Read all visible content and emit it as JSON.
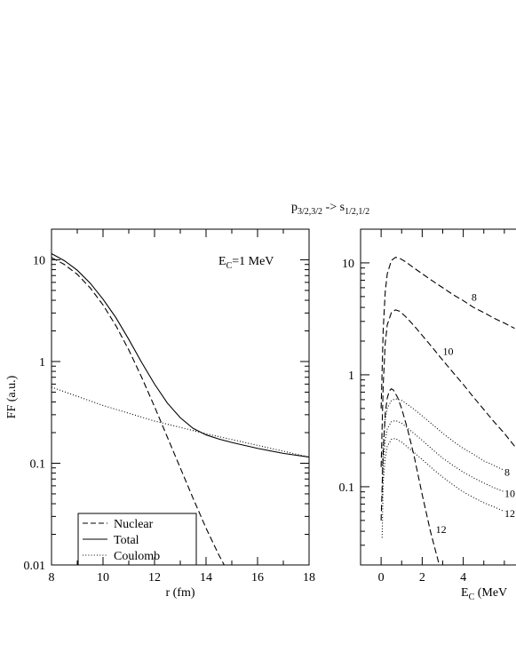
{
  "figure": {
    "title_main": "p",
    "title_sub1": "3/2,3/2",
    "title_arrow": " -> s",
    "title_sub2": "1/2,1/2"
  },
  "chart_data": [
    {
      "type": "line",
      "yscale": "log",
      "xlabel": "r (fm)",
      "ylabel": "FF (a.u.)",
      "xlim": [
        8,
        18
      ],
      "ylim": [
        0.01,
        20
      ],
      "xticks": [
        8,
        10,
        12,
        14,
        16,
        18
      ],
      "yticks": [
        0.01,
        0.1,
        1,
        10
      ],
      "ytick_labels": [
        "0.01",
        "0.1",
        "1",
        "10"
      ],
      "annotation": {
        "main": "E",
        "sub": "C",
        "rest": "=1 MeV"
      },
      "legend_position": "bottom-left",
      "series": [
        {
          "name": "Nuclear",
          "style": "dashed",
          "x": [
            8,
            8.5,
            9,
            9.5,
            10,
            10.5,
            11,
            11.5,
            12,
            12.5,
            13,
            13.5,
            14,
            14.5,
            14.8
          ],
          "y": [
            10.5,
            9.0,
            7.2,
            5.3,
            3.6,
            2.25,
            1.3,
            0.7,
            0.36,
            0.18,
            0.09,
            0.045,
            0.023,
            0.0125,
            0.009
          ]
        },
        {
          "name": "Total",
          "style": "solid",
          "x": [
            8,
            8.5,
            9,
            9.5,
            10,
            10.5,
            11,
            11.5,
            12,
            12.5,
            13,
            13.5,
            14,
            14.5,
            15,
            16,
            17,
            18
          ],
          "y": [
            11.5,
            9.8,
            7.9,
            5.9,
            4.1,
            2.7,
            1.65,
            0.98,
            0.6,
            0.39,
            0.28,
            0.22,
            0.19,
            0.173,
            0.16,
            0.14,
            0.125,
            0.115
          ]
        },
        {
          "name": "Coulomb",
          "style": "dotted",
          "x": [
            8,
            10,
            12,
            14,
            16,
            18
          ],
          "y": [
            0.56,
            0.37,
            0.26,
            0.195,
            0.15,
            0.115
          ]
        }
      ]
    },
    {
      "type": "line",
      "yscale": "log",
      "xlabel": "E",
      "xlabel_sub": "C",
      "xlabel_rest": " (MeV",
      "xlim": [
        -1,
        7
      ],
      "ylim": [
        0.02,
        20
      ],
      "xticks": [
        0,
        2,
        4
      ],
      "yticks": [
        0.1,
        1,
        10
      ],
      "ytick_labels": [
        "0.1",
        "1",
        "10"
      ],
      "series": [
        {
          "label": "8",
          "style": "dashed",
          "x": [
            0.0,
            0.1,
            0.2,
            0.3,
            0.5,
            0.7,
            0.9,
            1.2,
            1.6,
            2.0,
            2.5,
            3.0,
            3.5,
            4.0,
            4.5,
            5.0,
            5.5,
            6.0,
            6.5
          ],
          "y": [
            0.5,
            2.5,
            5.5,
            8.0,
            10.5,
            11.2,
            11.0,
            10.2,
            9.0,
            8.0,
            6.9,
            6.0,
            5.2,
            4.6,
            4.0,
            3.6,
            3.2,
            2.9,
            2.6
          ]
        },
        {
          "label": "10",
          "style": "dashed",
          "x": [
            0.0,
            0.1,
            0.2,
            0.3,
            0.5,
            0.7,
            0.9,
            1.2,
            1.6,
            2.0,
            2.5,
            3.0,
            3.5,
            4.0,
            4.5,
            5.0,
            5.5,
            6.0,
            6.5
          ],
          "y": [
            0.15,
            0.8,
            1.9,
            2.8,
            3.6,
            3.8,
            3.7,
            3.3,
            2.75,
            2.25,
            1.75,
            1.35,
            1.05,
            0.82,
            0.63,
            0.49,
            0.38,
            0.3,
            0.23
          ]
        },
        {
          "label": "12",
          "style": "dashed",
          "x": [
            0.0,
            0.1,
            0.2,
            0.3,
            0.4,
            0.5,
            0.6,
            0.8,
            1.0,
            1.3,
            1.6,
            2.0,
            2.4,
            2.8,
            3.0
          ],
          "y": [
            0.05,
            0.2,
            0.45,
            0.62,
            0.72,
            0.75,
            0.73,
            0.63,
            0.5,
            0.32,
            0.19,
            0.085,
            0.04,
            0.021,
            0.016
          ]
        },
        {
          "label": "8",
          "style": "dotted",
          "x": [
            0.05,
            0.1,
            0.2,
            0.3,
            0.5,
            0.7,
            1.0,
            1.5,
            2.0,
            2.5,
            3.0,
            3.5,
            4.0,
            4.5,
            5.0,
            5.5,
            6.0
          ],
          "y": [
            0.13,
            0.24,
            0.4,
            0.5,
            0.59,
            0.61,
            0.59,
            0.51,
            0.43,
            0.36,
            0.3,
            0.255,
            0.22,
            0.195,
            0.17,
            0.155,
            0.14
          ]
        },
        {
          "label": "10",
          "style": "dotted",
          "x": [
            0.05,
            0.1,
            0.2,
            0.3,
            0.5,
            0.7,
            1.0,
            1.5,
            2.0,
            2.5,
            3.0,
            3.5,
            4.0,
            4.5,
            5.0,
            5.5,
            6.0
          ],
          "y": [
            0.08,
            0.16,
            0.26,
            0.33,
            0.38,
            0.39,
            0.37,
            0.31,
            0.26,
            0.215,
            0.18,
            0.155,
            0.135,
            0.12,
            0.108,
            0.098,
            0.09
          ]
        },
        {
          "label": "12",
          "style": "dotted",
          "x": [
            0.05,
            0.1,
            0.2,
            0.3,
            0.5,
            0.7,
            1.0,
            1.5,
            2.0,
            2.5,
            3.0,
            3.5,
            4.0,
            4.5,
            5.0,
            5.5,
            6.0
          ],
          "y": [
            0.035,
            0.11,
            0.18,
            0.23,
            0.265,
            0.27,
            0.25,
            0.21,
            0.175,
            0.145,
            0.122,
            0.104,
            0.09,
            0.08,
            0.072,
            0.066,
            0.06
          ]
        }
      ]
    }
  ]
}
